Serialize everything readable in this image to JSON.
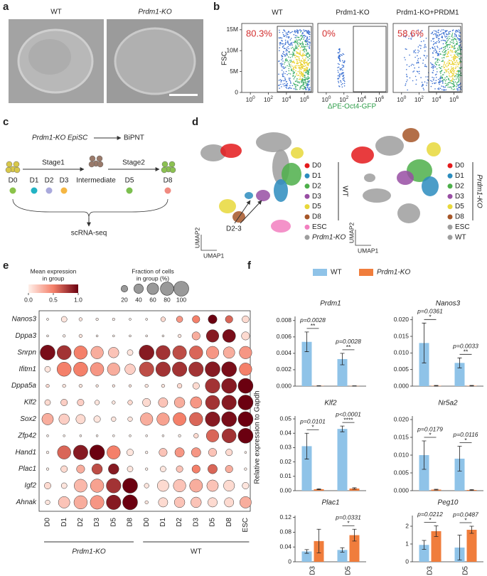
{
  "panel_labels": [
    "a",
    "b",
    "c",
    "d",
    "e",
    "f"
  ],
  "panel_a": {
    "labels": [
      "WT",
      "Prdm1-KO"
    ]
  },
  "panel_b": {
    "titles": [
      "WT",
      "Prdm1-KO",
      "Prdm1-KO+PRDM1"
    ],
    "percentages": [
      "80.3%",
      "0%",
      "58.6%"
    ],
    "y_label": "FSC",
    "x_label": "ΔPE-Oct4-GFP",
    "ylim": [
      0,
      16500000
    ],
    "yticks": [
      0,
      {
        "value": 5000000,
        "label": "5M"
      },
      {
        "value": 10000000,
        "label": "10M"
      },
      {
        "value": 15000000,
        "label": "15M"
      }
    ],
    "xscale": "log",
    "xlim": [
      0.11,
      8500000
    ],
    "xticks": [
      {
        "value": 1,
        "label": "10",
        "exponent": "0"
      },
      {
        "value": 100,
        "label": "10",
        "exponent": "2"
      },
      {
        "value": 10000,
        "label": "10",
        "exponent": "4"
      },
      {
        "value": 1000000,
        "label": "10",
        "exponent": "6"
      }
    ]
  },
  "panel_c": {
    "start": "Prdm1-KO EpiSC",
    "end": "BiPNT",
    "stages": [
      "Stage1",
      "Stage2"
    ],
    "timepoints": [
      "D0",
      "D1",
      "D2",
      "D3",
      "Intermediate",
      "D5",
      "D8"
    ],
    "output": "scRNA-seq"
  },
  "panel_d": {
    "x_axis": "UMAP1",
    "y_axis": "UMAP2",
    "annotation": "D2-3",
    "umaps": [
      {
        "group_label": "WT",
        "legend": [
          {
            "name": "D0",
            "color": "#e41a1c"
          },
          {
            "name": "D1",
            "color": "#2b8cbe"
          },
          {
            "name": "D2",
            "color": "#4daf4a"
          },
          {
            "name": "D3",
            "color": "#984ea3"
          },
          {
            "name": "D5",
            "color": "#e8d83a"
          },
          {
            "name": "D8",
            "color": "#a65628"
          },
          {
            "name": "ESC",
            "color": "#f27fbf"
          },
          {
            "name": "Prdm1-KO",
            "color": "#9e9e9e"
          }
        ]
      },
      {
        "group_label": "Prdm1-KO",
        "legend": [
          {
            "name": "D0",
            "color": "#e41a1c"
          },
          {
            "name": "D1",
            "color": "#2b8cbe"
          },
          {
            "name": "D2",
            "color": "#4daf4a"
          },
          {
            "name": "D3",
            "color": "#984ea3"
          },
          {
            "name": "D5",
            "color": "#e8d83a"
          },
          {
            "name": "D8",
            "color": "#a65628"
          },
          {
            "name": "ESC",
            "color": "#9e9e9e"
          },
          {
            "name": "WT",
            "color": "#9e9e9e"
          }
        ]
      }
    ]
  },
  "panel_f": {
    "y_label": "Relative expression to Gapdh"
  },
  "chart_data": [
    {
      "type": "dotplot",
      "rows": [
        "Nanos3",
        "Dppa3",
        "Snrpn",
        "Ifitm1",
        "Dppa5a",
        "Klf2",
        "Sox2",
        "Zfp42",
        "Hand1",
        "Plac1",
        "Igf2",
        "Ahnak"
      ],
      "groups": [
        {
          "name": "Prdm1-KO",
          "categories": [
            "D0",
            "D1",
            "D2",
            "D3",
            "D5",
            "D8"
          ]
        },
        {
          "name": "WT",
          "categories": [
            "D0",
            "D1",
            "D2",
            "D3",
            "D5",
            "D8",
            "ESC"
          ]
        }
      ],
      "clim": [
        0,
        1
      ],
      "color_legend": {
        "title": [
          "Mean expression",
          "in group"
        ],
        "ticks": [
          {
            "value": 0,
            "label": "0.0"
          },
          0.5,
          {
            "value": 1,
            "label": "1.0"
          }
        ]
      },
      "size_legend": {
        "title": [
          "Fraction of cells",
          "in group (%)"
        ],
        "ticks": [
          20,
          40,
          60,
          80,
          100
        ]
      },
      "size_max": 100,
      "expression": [
        [
          0,
          0.05,
          0.05,
          0,
          0,
          0,
          0,
          0.1,
          0.4,
          0.5,
          1.0,
          0.6,
          0.1
        ],
        [
          0,
          0,
          0.05,
          0,
          0,
          0,
          0,
          0,
          0.05,
          0.3,
          0.9,
          0.95,
          0.1
        ],
        [
          0.95,
          0.8,
          0.5,
          0.3,
          0.2,
          0.05,
          0.9,
          0.8,
          0.7,
          0.6,
          0.4,
          0.3,
          0.4
        ],
        [
          0.05,
          0.5,
          0.5,
          0.4,
          0.3,
          0.15,
          0.7,
          0.8,
          0.8,
          0.8,
          0.9,
          0.95,
          0.5
        ],
        [
          0.1,
          0.05,
          0.05,
          0.05,
          0.05,
          0.05,
          0.05,
          0.05,
          0.1,
          0.1,
          0.8,
          0.9,
          1.0
        ],
        [
          0.1,
          0.15,
          0.15,
          0.05,
          0.05,
          0.1,
          0.1,
          0.2,
          0.3,
          0.4,
          0.8,
          0.9,
          1.0
        ],
        [
          0.3,
          0.15,
          0.1,
          0.05,
          0.05,
          0.05,
          0.3,
          0.35,
          0.5,
          0.6,
          0.9,
          0.95,
          1.0
        ],
        [
          0,
          0,
          0,
          0,
          0,
          0,
          0,
          0,
          0,
          0.1,
          0.6,
          0.8,
          1.0
        ],
        [
          0,
          0.6,
          0.9,
          1.0,
          0.5,
          0.05,
          0,
          0.2,
          0.4,
          0.4,
          0.2,
          0.1,
          0
        ],
        [
          0,
          0.1,
          0.3,
          0.7,
          0.9,
          0.05,
          0,
          0.05,
          0.2,
          0.5,
          0.6,
          0.3,
          0
        ],
        [
          0.1,
          0.05,
          0.25,
          0.35,
          0.8,
          1.0,
          0.05,
          0.1,
          0.2,
          0.3,
          0.2,
          0.1,
          0.05
        ],
        [
          0.05,
          0.2,
          0.3,
          0.4,
          0.9,
          1.0,
          0.05,
          0.1,
          0.2,
          0.2,
          0.1,
          0.1,
          0.3
        ]
      ],
      "fraction": [
        [
          2,
          15,
          5,
          3,
          3,
          2,
          2,
          10,
          18,
          25,
          35,
          25,
          22
        ],
        [
          2,
          3,
          5,
          2,
          2,
          2,
          2,
          2,
          5,
          30,
          70,
          75,
          30
        ],
        [
          100,
          90,
          80,
          70,
          50,
          15,
          100,
          90,
          85,
          80,
          70,
          60,
          70
        ],
        [
          15,
          90,
          90,
          80,
          70,
          50,
          95,
          95,
          95,
          95,
          100,
          100,
          70
        ],
        [
          5,
          5,
          5,
          3,
          3,
          3,
          5,
          5,
          10,
          20,
          95,
          100,
          100
        ],
        [
          15,
          20,
          20,
          10,
          5,
          10,
          30,
          40,
          50,
          60,
          90,
          95,
          100
        ],
        [
          60,
          50,
          40,
          20,
          10,
          10,
          70,
          70,
          75,
          80,
          95,
          100,
          100
        ],
        [
          2,
          2,
          2,
          2,
          2,
          2,
          2,
          2,
          3,
          10,
          70,
          90,
          100
        ],
        [
          3,
          80,
          95,
          100,
          80,
          20,
          3,
          30,
          40,
          40,
          30,
          20,
          2
        ],
        [
          3,
          20,
          30,
          50,
          50,
          15,
          3,
          15,
          20,
          30,
          40,
          25,
          3
        ],
        [
          20,
          15,
          75,
          80,
          95,
          100,
          10,
          60,
          70,
          75,
          60,
          55,
          20
        ],
        [
          10,
          60,
          80,
          85,
          95,
          100,
          5,
          40,
          50,
          50,
          40,
          40,
          60
        ]
      ]
    },
    {
      "type": "bar",
      "title": "Prdm1",
      "categories": [
        null,
        null
      ],
      "series": [
        {
          "name": "WT",
          "color": "#8fc3e8",
          "values": [
            0.0054,
            0.0033
          ],
          "errors": [
            0.0012,
            0.0007
          ]
        },
        {
          "name": "Prdm1-KO",
          "color": "#f07d3c",
          "values": [
            3e-05,
            2e-05
          ],
          "errors": [
            2e-05,
            2e-05
          ]
        }
      ],
      "ylim": [
        0,
        0.0085
      ],
      "yticks": [
        {
          "value": 0,
          "label": "0.000"
        },
        0.002,
        0.004,
        0.006,
        0.008
      ],
      "p_values": [
        "p=0.0028",
        "p=0.0028"
      ],
      "significance": [
        "**",
        "**"
      ]
    },
    {
      "type": "bar",
      "title": "Nanos3",
      "categories": [
        null,
        null
      ],
      "series": [
        {
          "name": "WT",
          "color": "#8fc3e8",
          "values": [
            0.013,
            0.007
          ],
          "errors": [
            0.006,
            0.0015
          ]
        },
        {
          "name": "Prdm1-KO",
          "color": "#f07d3c",
          "values": [
            0.0001,
            0.0001
          ],
          "errors": [
            0.0001,
            0.0001
          ]
        }
      ],
      "ylim": [
        0,
        0.021
      ],
      "yticks": [
        {
          "value": 0,
          "label": "0.000"
        },
        0.005,
        {
          "value": 0.01,
          "label": "0.010"
        },
        0.015,
        {
          "value": 0.02,
          "label": "0.020"
        }
      ],
      "p_values": [
        "p=0.0361",
        "p=0.0033"
      ],
      "significance": [
        "*",
        "**"
      ]
    },
    {
      "type": "bar",
      "title": "Klf2",
      "categories": [
        null,
        null
      ],
      "series": [
        {
          "name": "WT",
          "color": "#8fc3e8",
          "values": [
            0.031,
            0.043
          ],
          "errors": [
            0.009,
            0.002
          ]
        },
        {
          "name": "Prdm1-KO",
          "color": "#f07d3c",
          "values": [
            0.001,
            0.0015
          ],
          "errors": [
            0.0003,
            0.0005
          ]
        }
      ],
      "ylim": [
        0,
        0.052
      ],
      "yticks": [
        {
          "value": 0,
          "label": "0.00"
        },
        0.01,
        0.02,
        0.03,
        0.04,
        0.05
      ],
      "p_values": [
        "p=0.0101",
        "p<0.0001"
      ],
      "significance": [
        "*",
        "****"
      ]
    },
    {
      "type": "bar",
      "title": "Nr5a2",
      "categories": [
        null,
        null
      ],
      "series": [
        {
          "name": "WT",
          "color": "#8fc3e8",
          "values": [
            0.01,
            0.009
          ],
          "errors": [
            0.004,
            0.0035
          ]
        },
        {
          "name": "Prdm1-KO",
          "color": "#f07d3c",
          "values": [
            0.0003,
            0.0002
          ],
          "errors": [
            0.0001,
            0.0001
          ]
        }
      ],
      "ylim": [
        0,
        0.021
      ],
      "yticks": [
        {
          "value": 0,
          "label": "0.000"
        },
        0.005,
        {
          "value": 0.01,
          "label": "0.010"
        },
        0.015,
        {
          "value": 0.02,
          "label": "0.020"
        }
      ],
      "p_values": [
        "p=0.0179",
        "p=0.0116"
      ],
      "significance": [
        "*",
        "*"
      ]
    },
    {
      "type": "bar",
      "title": "Plac1",
      "categories": [
        "D3",
        "D5"
      ],
      "series": [
        {
          "name": "WT",
          "color": "#8fc3e8",
          "values": [
            0.028,
            0.032
          ],
          "errors": [
            0.005,
            0.006
          ]
        },
        {
          "name": "Prdm1-KO",
          "color": "#f07d3c",
          "values": [
            0.056,
            0.072
          ],
          "errors": [
            0.032,
            0.016
          ]
        }
      ],
      "ylim": [
        0,
        0.125
      ],
      "yticks": [
        0,
        0.04,
        0.08,
        0.12
      ],
      "p_values": [
        null,
        "p=0.0331"
      ],
      "significance": [
        null,
        "*"
      ]
    },
    {
      "type": "bar",
      "title": "Peg10",
      "categories": [
        "D3",
        "D5"
      ],
      "series": [
        {
          "name": "WT",
          "color": "#8fc3e8",
          "values": [
            0.95,
            0.8
          ],
          "errors": [
            0.25,
            0.7
          ]
        },
        {
          "name": "Prdm1-KO",
          "color": "#f07d3c",
          "values": [
            1.72,
            1.8
          ],
          "errors": [
            0.3,
            0.2
          ]
        }
      ],
      "ylim": [
        0,
        2.6
      ],
      "yticks": [
        0,
        1,
        2
      ],
      "p_values": [
        "p=0.0212",
        "p=0.0487"
      ],
      "significance": [
        "*",
        "*"
      ]
    }
  ]
}
